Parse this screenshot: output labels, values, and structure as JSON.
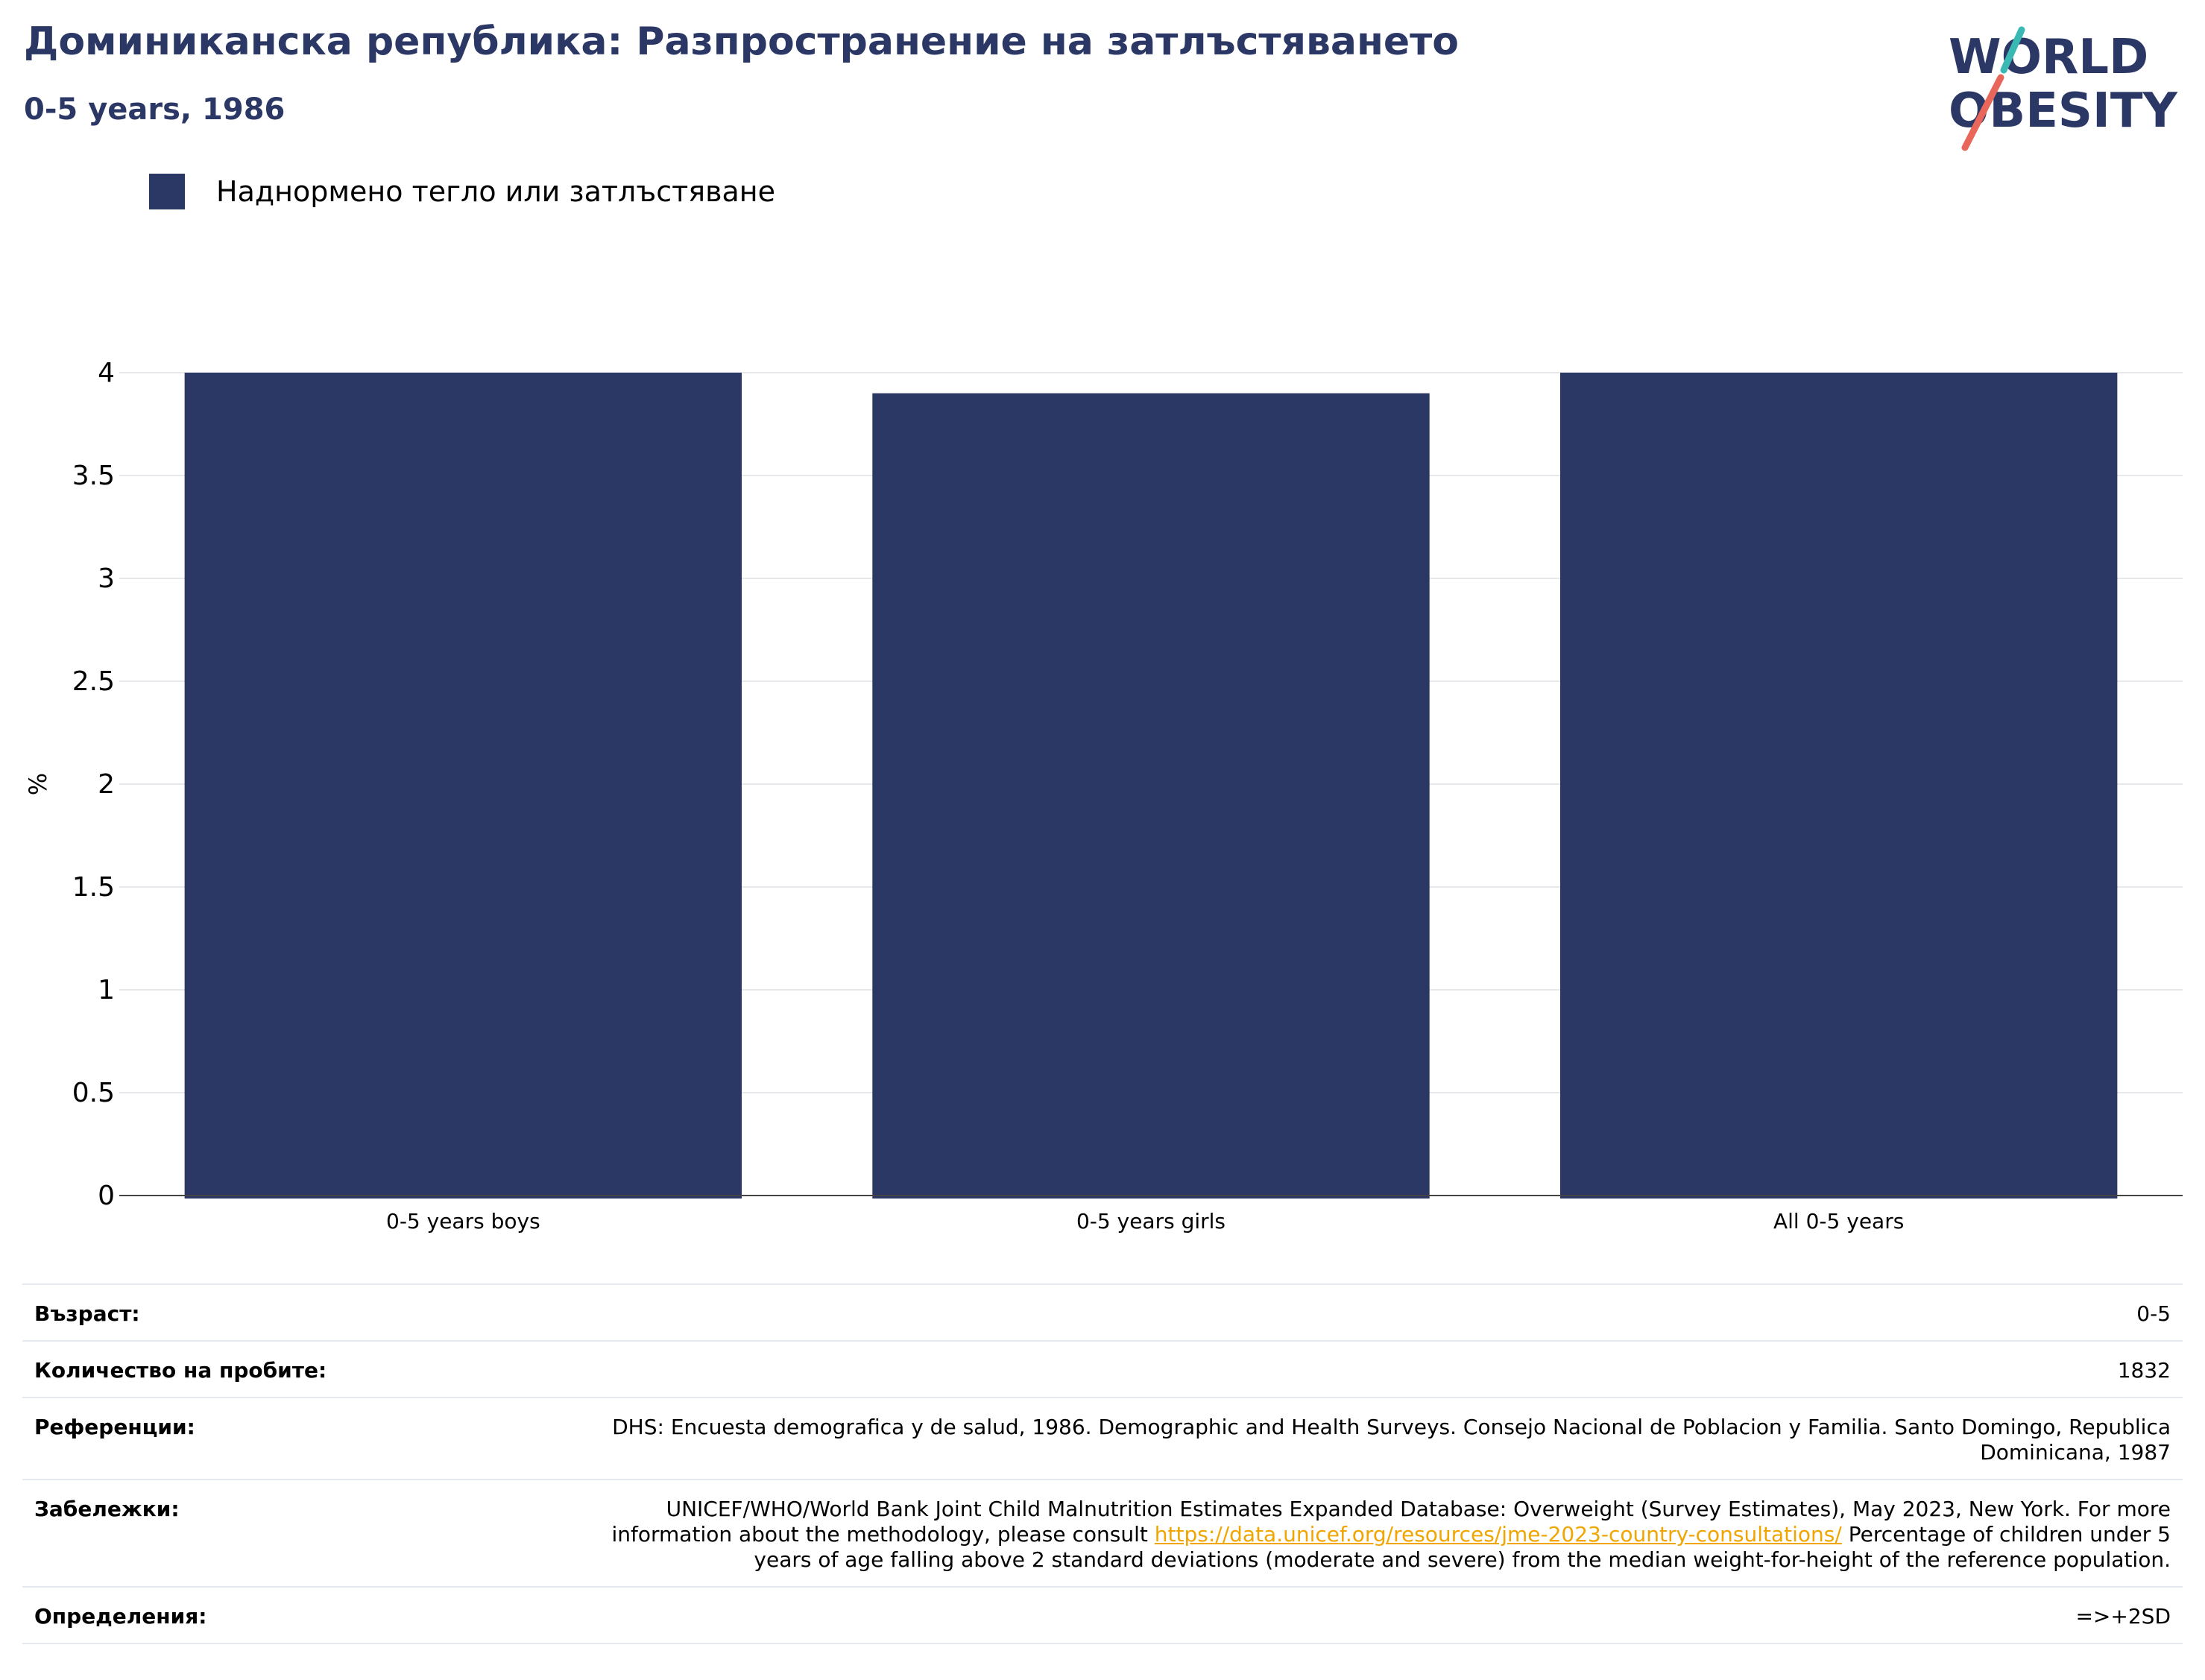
{
  "header": {
    "title": "Доминиканска република: Разпространение на затлъстяването",
    "subtitle": "0-5 years, 1986"
  },
  "logo": {
    "line1": "WORLD",
    "line2": "OBESITY"
  },
  "colors": {
    "bar": "#2b3764",
    "title": "#2b3764",
    "logo_teal": "#3ab8b3",
    "logo_red": "#e8675a",
    "link": "#f0a500"
  },
  "legend": {
    "label": "Наднормено тегло или затлъстяване"
  },
  "chart_data": {
    "type": "bar",
    "categories": [
      "0-5 years boys",
      "0-5 years girls",
      "All 0-5 years"
    ],
    "series": [
      {
        "name": "Наднормено тегло или затлъстяване",
        "values": [
          4.0,
          3.9,
          4.0
        ]
      }
    ],
    "ylabel": "%",
    "xlabel": "",
    "ylim": [
      0,
      4
    ],
    "yticks": [
      "0",
      "0.5",
      "1",
      "1.5",
      "2",
      "2.5",
      "3",
      "3.5",
      "4"
    ],
    "grid": true,
    "legend_position": "top-left"
  },
  "info": {
    "age": {
      "label": "Възраст:",
      "value": "0-5"
    },
    "sample": {
      "label": "Количество на пробите:",
      "value": "1832"
    },
    "references": {
      "label": "Референции:",
      "value": "DHS: Encuesta demografica y de salud, 1986. Demographic and Health Surveys. Consejo Nacional de Poblacion y Familia. Santo Domingo, Republica Dominicana, 1987"
    },
    "notes": {
      "label": "Забележки:",
      "before": "UNICEF/WHO/World Bank Joint Child Malnutrition Estimates Expanded Database: Overweight (Survey Estimates), May 2023, New York. For more information about the methodology, please consult ",
      "link": "https://data.unicef.org/resources/jme-2023-country-consultations/",
      "after": " Percentage of children under 5 years of age falling above 2 standard deviations (moderate and severe) from the median weight-for-height of the reference population."
    },
    "definitions": {
      "label": "Определения:",
      "value": "=>+2SD"
    }
  }
}
